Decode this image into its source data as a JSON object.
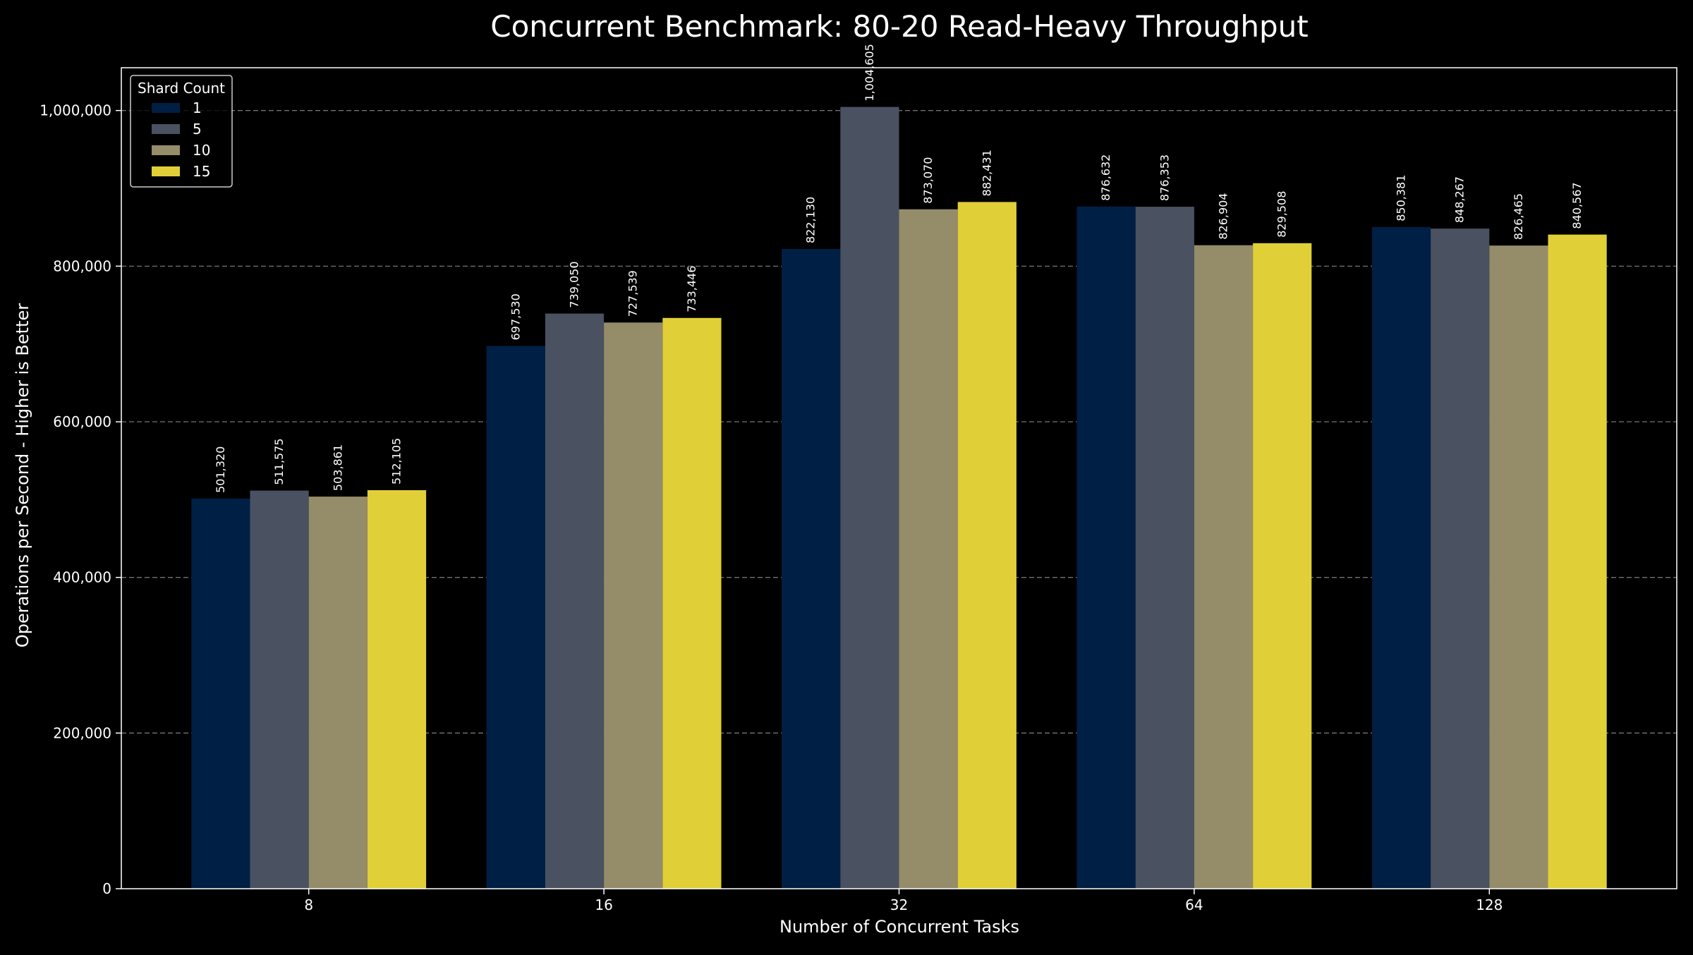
{
  "chart_data": {
    "type": "bar",
    "title": "Concurrent Benchmark: 80-20 Read-Heavy Throughput",
    "xlabel": "Number of Concurrent Tasks",
    "ylabel": "Operations per Second - Higher is Better",
    "categories": [
      "8",
      "16",
      "32",
      "64",
      "128"
    ],
    "ylim": [
      0,
      1055000
    ],
    "yticks": [
      0,
      200000,
      400000,
      600000,
      800000,
      1000000
    ],
    "ytick_labels": [
      "0",
      "200,000",
      "400,000",
      "600,000",
      "800,000",
      "1,000,000"
    ],
    "grid": "y-dashed",
    "legend": {
      "title": "Shard Count",
      "placement": "top-left"
    },
    "series": [
      {
        "name": "1",
        "color": "#001f45",
        "values": [
          501320,
          697530,
          822130,
          876632,
          850381
        ],
        "labels": [
          "501,320",
          "697,530",
          "822,130",
          "876,632",
          "850,381"
        ]
      },
      {
        "name": "5",
        "color": "#4a5160",
        "values": [
          511575,
          739050,
          1004605,
          876353,
          848267
        ],
        "labels": [
          "511,575",
          "739,050",
          "1,004,605",
          "876,353",
          "848,267"
        ]
      },
      {
        "name": "10",
        "color": "#958c69",
        "values": [
          503861,
          727539,
          873070,
          826904,
          826465
        ],
        "labels": [
          "503,861",
          "727,539",
          "873,070",
          "826,904",
          "826,465"
        ]
      },
      {
        "name": "15",
        "color": "#e1cf37",
        "values": [
          512105,
          733446,
          882431,
          829508,
          840567
        ],
        "labels": [
          "512,105",
          "733,446",
          "882,431",
          "829,508",
          "840,567"
        ]
      }
    ]
  }
}
